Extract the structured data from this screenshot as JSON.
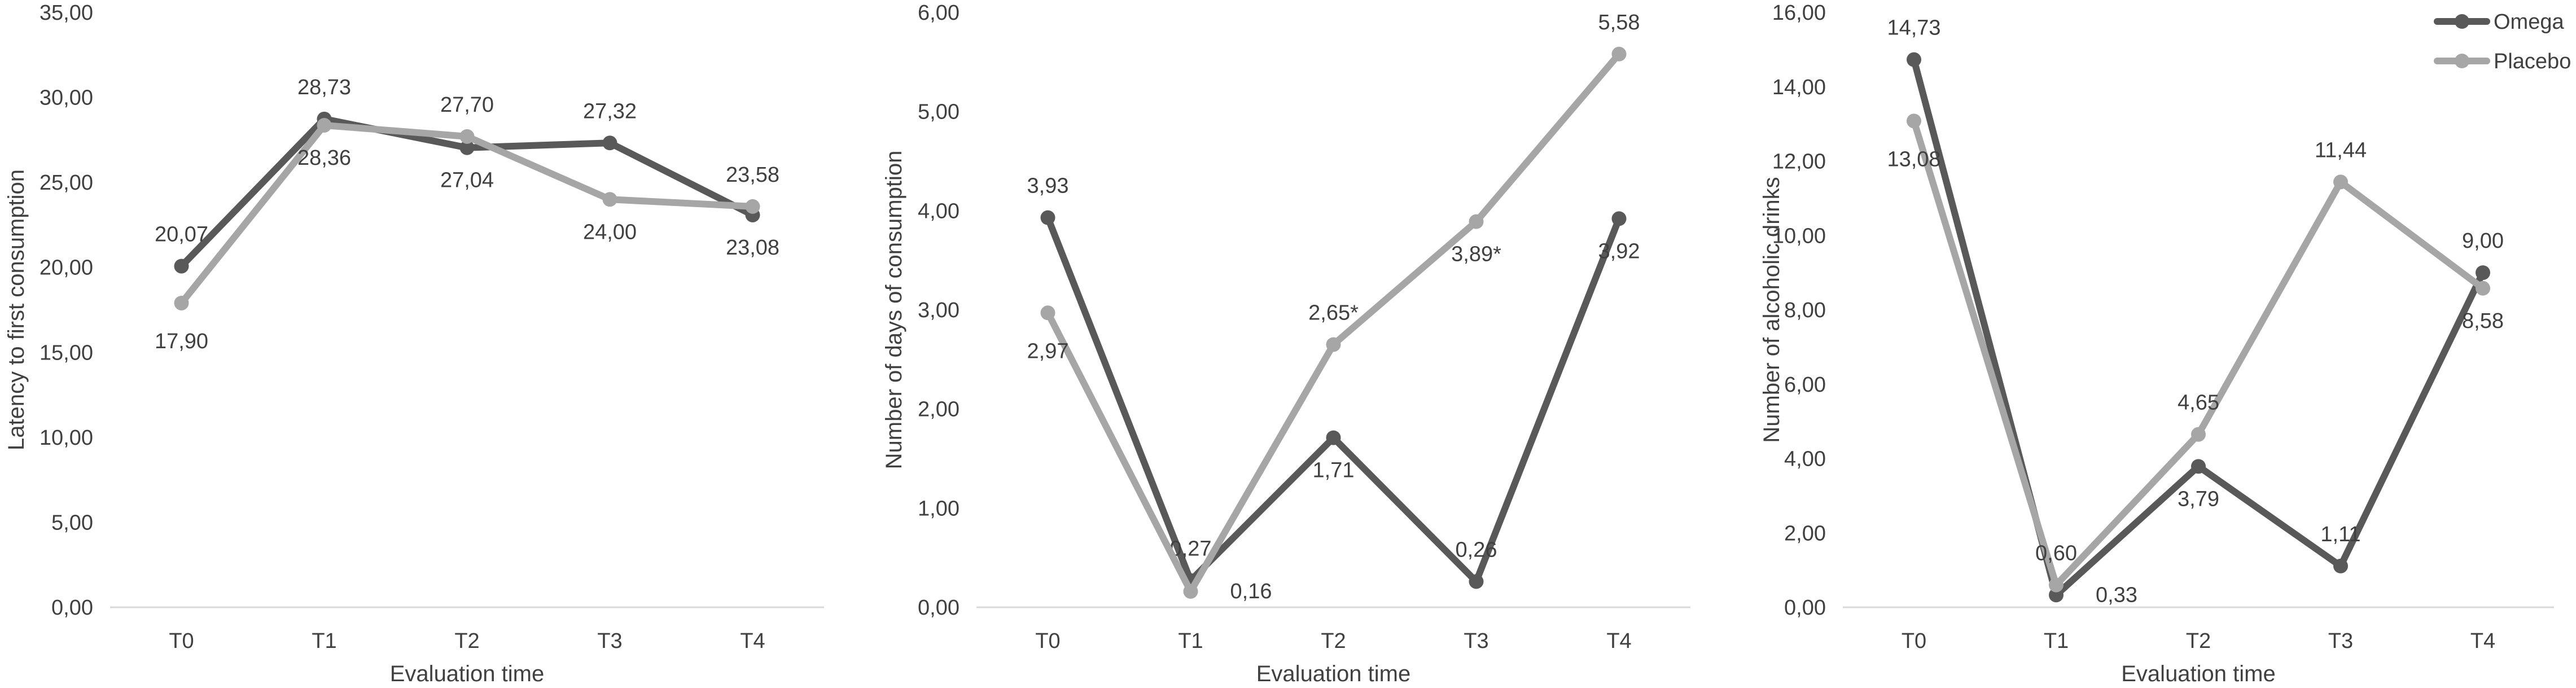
{
  "colors": {
    "omega": "#595959",
    "placebo": "#a6a6a6",
    "axis": "#d9d9d9",
    "text": "#404040"
  },
  "legend": {
    "position": "top-right",
    "entries": [
      "Omega",
      "Placebo"
    ]
  },
  "chart_data": [
    {
      "type": "line",
      "categories": [
        "T0",
        "T1",
        "T2",
        "T3",
        "T4"
      ],
      "xlabel": "Evaluation time",
      "ylabel": "Latency to first consumption",
      "ylim": [
        0,
        35
      ],
      "yticks": [
        "0,00",
        "5,00",
        "10,00",
        "15,00",
        "20,00",
        "25,00",
        "30,00",
        "35,00"
      ],
      "grid": false,
      "series": [
        {
          "name": "Omega",
          "values": [
            20.07,
            28.73,
            27.04,
            27.32,
            23.08
          ],
          "labels": [
            "20,07",
            "28,73",
            "27,04",
            "27,32",
            "23,08"
          ]
        },
        {
          "name": "Placebo",
          "values": [
            17.9,
            28.36,
            27.7,
            24.0,
            23.58
          ],
          "labels": [
            "17,90",
            "28,36",
            "27,70",
            "24,00",
            "23,58"
          ]
        }
      ]
    },
    {
      "type": "line",
      "categories": [
        "T0",
        "T1",
        "T2",
        "T3",
        "T4"
      ],
      "xlabel": "Evaluation time",
      "ylabel": "Number of days of consumption",
      "ylim": [
        0,
        6
      ],
      "yticks": [
        "0,00",
        "1,00",
        "2,00",
        "3,00",
        "4,00",
        "5,00",
        "6,00"
      ],
      "grid": false,
      "series": [
        {
          "name": "Omega",
          "values": [
            3.93,
            0.27,
            1.71,
            0.26,
            3.92
          ],
          "labels": [
            "3,93",
            "0,27",
            "1,71",
            "0,26",
            "3,92"
          ]
        },
        {
          "name": "Placebo",
          "values": [
            2.97,
            0.16,
            2.65,
            3.89,
            5.58
          ],
          "labels": [
            "2,97",
            "0,16",
            "2,65*",
            "3,89*",
            "5,58"
          ]
        }
      ]
    },
    {
      "type": "line",
      "categories": [
        "T0",
        "T1",
        "T2",
        "T3",
        "T4"
      ],
      "xlabel": "Evaluation time",
      "ylabel": "Number of alcoholic drinks",
      "ylim": [
        0,
        16
      ],
      "yticks": [
        "0,00",
        "2,00",
        "4,00",
        "6,00",
        "8,00",
        "10,00",
        "12,00",
        "14,00",
        "16,00"
      ],
      "grid": false,
      "series": [
        {
          "name": "Omega",
          "values": [
            14.73,
            0.33,
            3.79,
            1.11,
            9.0
          ],
          "labels": [
            "14,73",
            "0,33",
            "3,79",
            "1,11",
            "9,00"
          ]
        },
        {
          "name": "Placebo",
          "values": [
            13.08,
            0.6,
            4.65,
            11.44,
            8.58
          ],
          "labels": [
            "13,08",
            "0,60",
            "4,65",
            "11,44",
            "8,58"
          ]
        }
      ]
    }
  ]
}
